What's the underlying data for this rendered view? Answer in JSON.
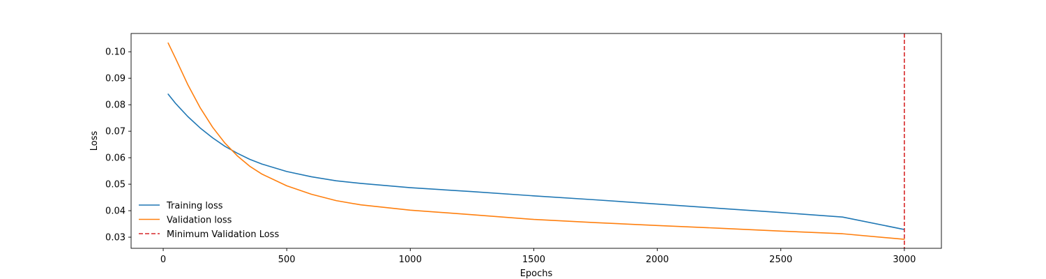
{
  "chart_data": {
    "type": "line",
    "title": "",
    "xlabel": "Epochs",
    "ylabel": "Loss",
    "xlim": [
      -130,
      3150
    ],
    "ylim": [
      0.0258,
      0.1069
    ],
    "x_ticks": [
      0,
      500,
      1000,
      1500,
      2000,
      2500,
      3000
    ],
    "x_tick_labels": [
      "0",
      "500",
      "1000",
      "1500",
      "2000",
      "2500",
      "3000"
    ],
    "y_ticks": [
      0.03,
      0.04,
      0.05,
      0.06,
      0.07,
      0.08,
      0.09,
      0.1
    ],
    "y_tick_labels": [
      "0.03",
      "0.04",
      "0.05",
      "0.06",
      "0.07",
      "0.08",
      "0.09",
      "0.10"
    ],
    "grid": false,
    "legend_position": "lower-left",
    "x": [
      20,
      50,
      100,
      150,
      200,
      250,
      300,
      350,
      400,
      500,
      600,
      700,
      800,
      1000,
      1250,
      1500,
      1750,
      2000,
      2250,
      2500,
      2750,
      3000
    ],
    "series": [
      {
        "name": "Training loss",
        "color": "#1f77b4",
        "style": "solid",
        "values": [
          0.084,
          0.0805,
          0.0755,
          0.0712,
          0.0675,
          0.0643,
          0.0617,
          0.0594,
          0.0576,
          0.0548,
          0.0528,
          0.0513,
          0.0503,
          0.0487,
          0.0472,
          0.0456,
          0.0441,
          0.0425,
          0.0409,
          0.0393,
          0.0376,
          0.0329
        ]
      },
      {
        "name": "Validation loss",
        "color": "#ff7f0e",
        "style": "solid",
        "values": [
          0.1033,
          0.0975,
          0.0875,
          0.0788,
          0.0715,
          0.0655,
          0.0607,
          0.0568,
          0.0538,
          0.0494,
          0.0462,
          0.0438,
          0.0422,
          0.0402,
          0.0385,
          0.0367,
          0.0355,
          0.0344,
          0.0334,
          0.0323,
          0.0313,
          0.0292
        ]
      }
    ],
    "vlines": [
      {
        "name": "Minimum Validation Loss",
        "x": 3000,
        "color": "#d62728",
        "style": "dashed"
      }
    ]
  }
}
